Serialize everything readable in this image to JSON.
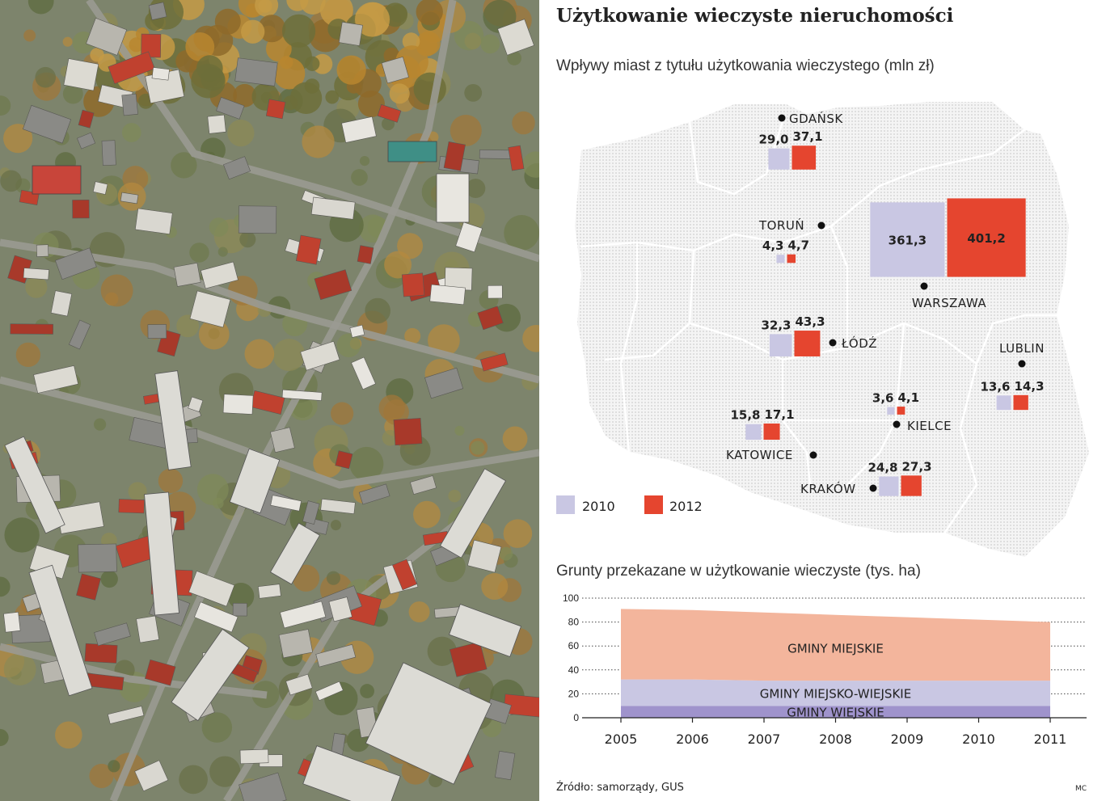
{
  "colors": {
    "color_2010": "#c9c7e3",
    "color_2012": "#e5452f",
    "area_miejskie": "#f3b59c",
    "area_miejsko_wiejskie": "#c9c7e3",
    "area_wiejskie": "#9f93cc",
    "map_land": "#e6e6e6"
  },
  "infographic": {
    "title": "Użytkowanie wieczyste nieruchomości",
    "map_subtitle": "Wpływy miast z tytułu użytkowania wieczystego (mln zł)",
    "area_subtitle": "Grunty przekazane w użytkowanie wieczyste (tys. ha)",
    "source": "Źródło: samorządy, GUS",
    "credit": "MC"
  },
  "chart_data": [
    {
      "type": "bar",
      "title": "Wpływy miast z tytułu użytkowania wieczystego (mln zł)",
      "legend": [
        "2010",
        "2012"
      ],
      "legend_position": "bottom-left",
      "cities": [
        {
          "name": "GDAŃSK",
          "v2010": 29.0,
          "v2012": 37.1,
          "l2010": "29,0",
          "l2012": "37,1"
        },
        {
          "name": "TORUŃ",
          "v2010": 4.3,
          "v2012": 4.7,
          "l2010": "4,3",
          "l2012": "4,7"
        },
        {
          "name": "WARSZAWA",
          "v2010": 361.3,
          "v2012": 401.2,
          "l2010": "361,3",
          "l2012": "401,2"
        },
        {
          "name": "ŁÓDŹ",
          "v2010": 32.3,
          "v2012": 43.3,
          "l2010": "32,3",
          "l2012": "43,3"
        },
        {
          "name": "LUBLIN",
          "v2010": 13.6,
          "v2012": 14.3,
          "l2010": "13,6",
          "l2012": "14,3"
        },
        {
          "name": "KIELCE",
          "v2010": 3.6,
          "v2012": 4.1,
          "l2010": "3,6",
          "l2012": "4,1"
        },
        {
          "name": "KATOWICE",
          "v2010": 15.8,
          "v2012": 17.1,
          "l2010": "15,8",
          "l2012": "17,1"
        },
        {
          "name": "KRAKÓW",
          "v2010": 24.8,
          "v2012": 27.3,
          "l2010": "24,8",
          "l2012": "27,3"
        }
      ]
    },
    {
      "type": "area",
      "title": "Grunty przekazane w użytkowanie wieczyste (tys. ha)",
      "stacked": true,
      "x": [
        2005,
        2006,
        2007,
        2008,
        2009,
        2010,
        2011
      ],
      "ylim": [
        0,
        100
      ],
      "yticks": [
        0,
        20,
        40,
        60,
        80,
        100
      ],
      "grid": true,
      "series": [
        {
          "name": "GMINY WIEJSKIE",
          "values": [
            10,
            10,
            10,
            10,
            10,
            10,
            10
          ]
        },
        {
          "name": "GMINY MIEJSKO-WIEJSKIE",
          "values": [
            22,
            22,
            21,
            21,
            21,
            21,
            21
          ]
        },
        {
          "name": "GMINY MIEJSKIE",
          "values": [
            59,
            58,
            57,
            55,
            53,
            51,
            49
          ]
        }
      ]
    }
  ]
}
